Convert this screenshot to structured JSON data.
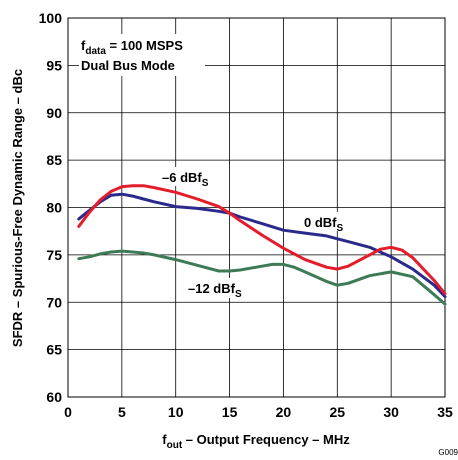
{
  "chart_data": {
    "type": "line",
    "title": "",
    "xlabel": "f",
    "xlabel_sub": "out",
    "xlabel_rest": " – Output Frequency – MHz",
    "ylabel": "SFDR – Spurious-Free Dynamic Range – dBc",
    "xlim": [
      0,
      35
    ],
    "ylim": [
      60,
      100
    ],
    "x_ticks": [
      0,
      5,
      10,
      15,
      20,
      25,
      30,
      35
    ],
    "y_ticks": [
      60,
      65,
      70,
      75,
      80,
      85,
      90,
      95,
      100
    ],
    "grid": true,
    "annotation": {
      "line1_main": "f",
      "line1_sub": "data",
      "line1_rest": " = 100 MSPS",
      "line2": "Dual Bus Mode"
    },
    "figure_id": "G009",
    "series": [
      {
        "name": "0 dBf",
        "name_sub": "S",
        "color": "#2b2a8c",
        "x": [
          1,
          2,
          3,
          4,
          5,
          6,
          7,
          8,
          10,
          12,
          14,
          15,
          16,
          18,
          20,
          22,
          24,
          25,
          26,
          28,
          30,
          32,
          34,
          35
        ],
        "y": [
          78.8,
          79.7,
          80.6,
          81.3,
          81.4,
          81.2,
          80.9,
          80.6,
          80.1,
          79.9,
          79.6,
          79.4,
          79.0,
          78.3,
          77.6,
          77.3,
          77.0,
          76.7,
          76.4,
          75.8,
          74.8,
          73.5,
          71.8,
          70.6
        ]
      },
      {
        "name": "–6 dBf",
        "name_sub": "S",
        "color": "#e31d2b",
        "x": [
          1,
          2,
          3,
          4,
          5,
          6,
          7,
          8,
          10,
          12,
          14,
          15,
          16,
          18,
          20,
          22,
          24,
          25,
          26,
          28,
          29,
          30,
          31,
          32,
          34,
          35
        ],
        "y": [
          78.0,
          79.5,
          80.8,
          81.7,
          82.2,
          82.3,
          82.3,
          82.1,
          81.6,
          80.9,
          80.1,
          79.4,
          78.6,
          77.1,
          75.7,
          74.5,
          73.7,
          73.5,
          73.8,
          75.0,
          75.6,
          75.8,
          75.5,
          74.7,
          72.3,
          70.9
        ]
      },
      {
        "name": "–12 dBf",
        "name_sub": "S",
        "color": "#3f7a56",
        "x": [
          1,
          2,
          3,
          4,
          5,
          6,
          7,
          8,
          10,
          12,
          14,
          15,
          16,
          18,
          19,
          20,
          21,
          22,
          24,
          25,
          26,
          28,
          30,
          32,
          34,
          35
        ],
        "y": [
          74.6,
          74.8,
          75.1,
          75.3,
          75.4,
          75.3,
          75.2,
          75.0,
          74.5,
          73.9,
          73.3,
          73.3,
          73.4,
          73.8,
          74.0,
          74.0,
          73.7,
          73.2,
          72.2,
          71.8,
          72.0,
          72.8,
          73.2,
          72.7,
          70.8,
          69.8
        ]
      }
    ]
  }
}
